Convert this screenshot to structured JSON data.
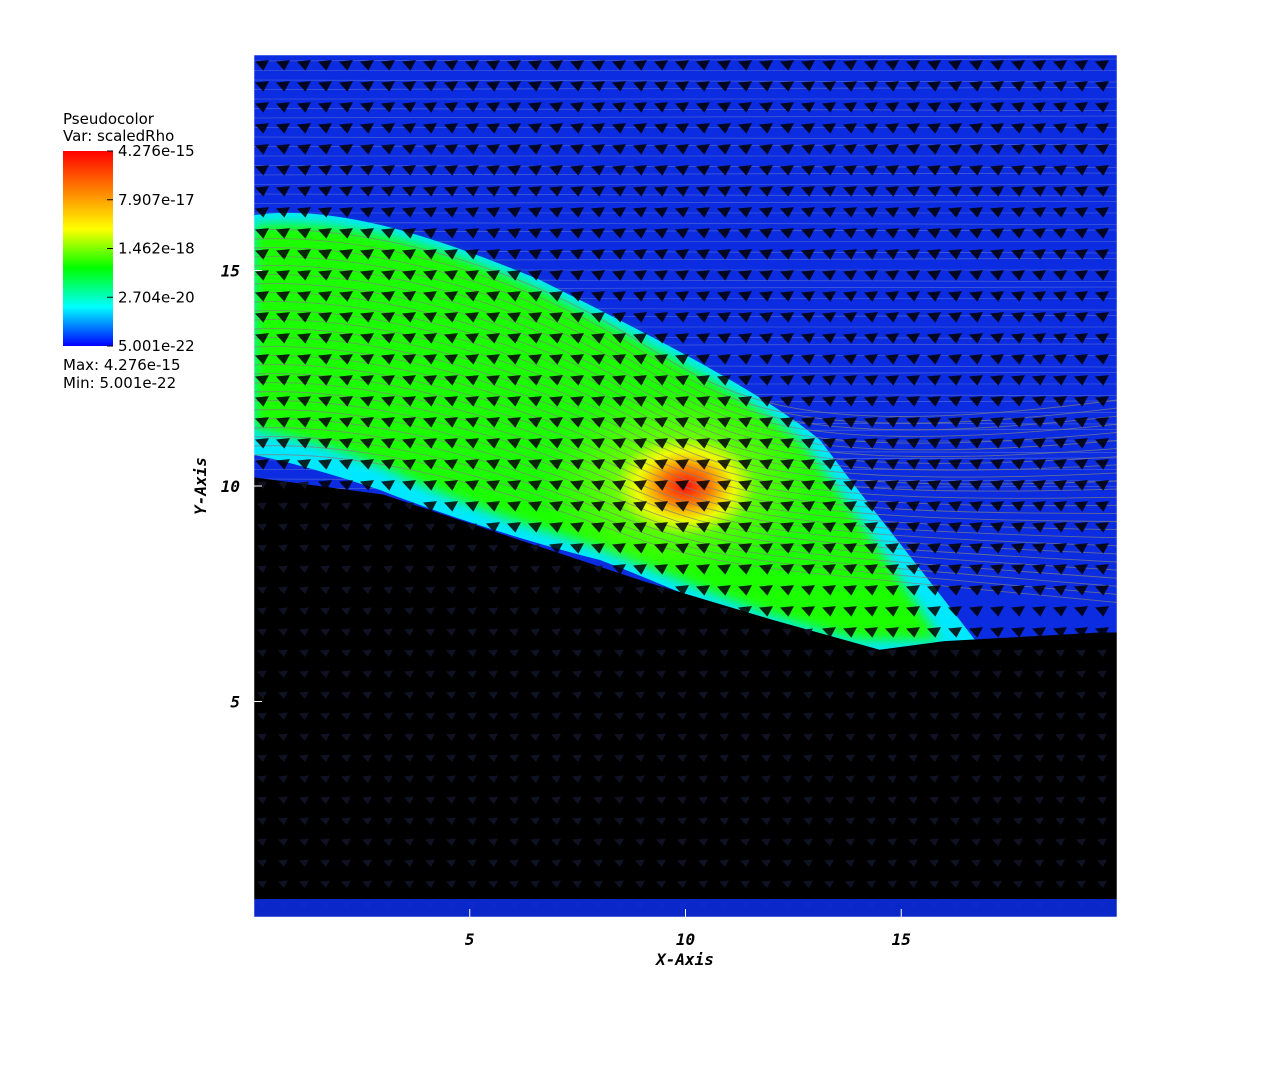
{
  "legend": {
    "plot_type": "Pseudocolor",
    "variable_line": "Var: scaledRho",
    "labels": [
      "4.276e-15",
      "7.907e-17",
      "1.462e-18",
      "2.704e-20",
      "5.001e-22"
    ],
    "max_line": "Max: 4.276e-15",
    "min_line": "Min: 5.001e-22",
    "colors": [
      "#ff0000",
      "#ff8000",
      "#ffff00",
      "#00ff00",
      "#00ffff",
      "#0000ff"
    ]
  },
  "chart_data": {
    "type": "heatmap",
    "title": "",
    "xlabel": "X-Axis",
    "ylabel": "Y-Axis",
    "xlim": [
      0,
      20
    ],
    "ylim": [
      0,
      20
    ],
    "xticks": [
      5,
      10,
      15
    ],
    "yticks": [
      5,
      10,
      15
    ],
    "xtick_labels": [
      "5",
      "10",
      "15"
    ],
    "ytick_labels": [
      "5",
      "10",
      "15"
    ],
    "colormap": "hot-desaturated rainbow (red-yellow-green-cyan-blue)",
    "scale": "log",
    "value_range": [
      5.001e-22,
      4.276e-15
    ],
    "overlays": [
      "vector glyphs",
      "streamlines"
    ],
    "peak": {
      "x": 10.0,
      "y": 10.0
    },
    "shadow_boundary": [
      [
        0,
        10.2
      ],
      [
        3,
        9.8
      ],
      [
        6,
        8.8
      ],
      [
        9,
        7.8
      ],
      [
        12,
        6.9
      ],
      [
        14.5,
        6.2
      ],
      [
        16,
        6.4
      ],
      [
        19.6,
        6.6
      ]
    ]
  }
}
